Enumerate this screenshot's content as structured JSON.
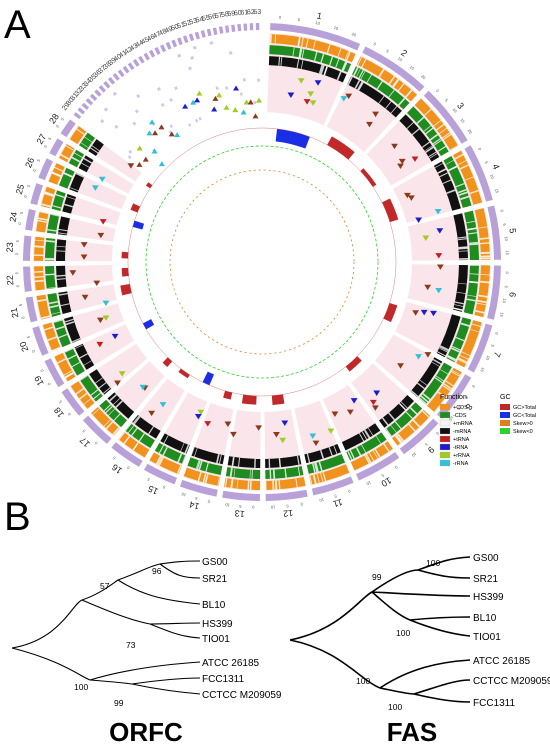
{
  "panel_a": {
    "letter": "A",
    "contigs": [
      "1",
      "2",
      "3",
      "4",
      "5",
      "6",
      "7",
      "8",
      "9",
      "10",
      "11",
      "12",
      "13",
      "14",
      "15",
      "16",
      "17",
      "18",
      "19",
      "20",
      "21",
      "22",
      "23",
      "24",
      "25",
      "26",
      "27",
      "28",
      "29",
      "30",
      "31",
      "32",
      "33",
      "34",
      "35",
      "36",
      "37",
      "38",
      "39",
      "40",
      "41",
      "42",
      "43",
      "44",
      "45",
      "46",
      "47",
      "48",
      "49",
      "50",
      "51",
      "52",
      "53",
      "54",
      "55",
      "56",
      "57",
      "58",
      "59",
      "60",
      "61",
      "62",
      "63"
    ],
    "tick_labels": [
      "0",
      "5",
      "10",
      "15",
      "20"
    ],
    "legend": {
      "function_title": "Function",
      "function_items": [
        {
          "label": "+CDS",
          "color": "#f0921c"
        },
        {
          "label": "-CDS",
          "color": "#1e8c1e"
        },
        {
          "label": "+mRNA",
          "color": "#f4f4f4"
        },
        {
          "label": "-mRNA",
          "color": "#111111"
        },
        {
          "label": "+tRNA",
          "color": "#c41e1e"
        },
        {
          "label": "-tRNA",
          "color": "#1c1ccc"
        },
        {
          "label": "+rRNA",
          "color": "#a0cc22"
        },
        {
          "label": "-rRNA",
          "color": "#30c0d8"
        }
      ],
      "gc_title": "GC",
      "gc_items": [
        {
          "label": "GC>Total",
          "color": "#c0282a"
        },
        {
          "label": "GC<Total",
          "color": "#1a2ee6"
        },
        {
          "label": "Skew>0",
          "color": "#e07f20"
        },
        {
          "label": "Skew<0",
          "color": "#30d030"
        }
      ]
    }
  },
  "panel_b": {
    "letter": "B",
    "trees": [
      {
        "title": "ORFC",
        "taxa": [
          "GS00",
          "SR21",
          "BL10",
          "HS399",
          "TIO01",
          "ATCC 26185",
          "FCC1311",
          "CCTCC M209059"
        ],
        "supports": [
          "96",
          "57",
          "73",
          "100",
          "99"
        ]
      },
      {
        "title": "FAS",
        "taxa": [
          "GS00",
          "SR21",
          "HS399",
          "BL10",
          "TIO01",
          "ATCC 26185",
          "CCTCC M209059",
          "FCC1311"
        ],
        "supports": [
          "100",
          "99",
          "100",
          "100",
          "100"
        ]
      }
    ]
  },
  "colors": {
    "purple_ring": "#b8a0d8",
    "pink_bg": "#f5c8d0",
    "orange_cds": "#f0921c",
    "green_cds": "#1e8c1e",
    "black_mrna": "#111111",
    "trna_plus": "#c41e1e",
    "trna_minus": "#1c1ccc",
    "rrna_plus": "#a0cc22",
    "rrna_minus": "#30c0d8",
    "marker_brown": "#8b3a1a",
    "gc_high": "#c0282a",
    "gc_low": "#1a2ee6",
    "skew_pos": "#e07f20",
    "skew_neg": "#30d030"
  }
}
